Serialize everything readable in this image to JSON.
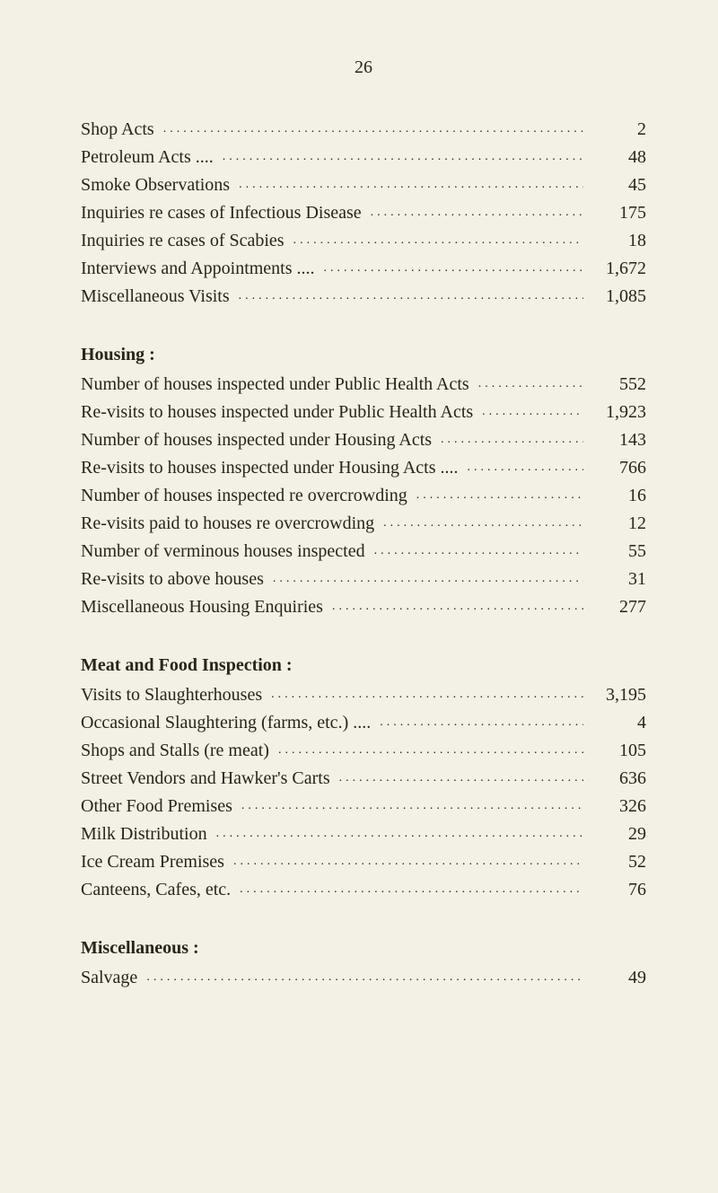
{
  "page_number": "26",
  "sections": [
    {
      "heading": null,
      "rows": [
        {
          "label": "Shop Acts",
          "value": "2"
        },
        {
          "label": "Petroleum Acts ....",
          "value": "48"
        },
        {
          "label": "Smoke Observations",
          "value": "45"
        },
        {
          "label": "Inquiries re cases of Infectious Disease",
          "value": "175"
        },
        {
          "label": "Inquiries re cases of Scabies",
          "value": "18"
        },
        {
          "label": "Interviews and Appointments ....",
          "value": "1,672"
        },
        {
          "label": "Miscellaneous Visits",
          "value": "1,085"
        }
      ]
    },
    {
      "heading": "Housing :",
      "rows": [
        {
          "label": "Number of houses inspected under Public Health Acts",
          "value": "552"
        },
        {
          "label": "Re-visits to houses inspected under Public Health Acts",
          "value": "1,923"
        },
        {
          "label": "Number of houses inspected under Housing Acts",
          "value": "143"
        },
        {
          "label": "Re-visits to houses inspected under Housing Acts ....",
          "value": "766"
        },
        {
          "label": "Number of houses inspected re overcrowding",
          "value": "16"
        },
        {
          "label": "Re-visits paid to houses re overcrowding",
          "value": "12"
        },
        {
          "label": "Number of verminous houses inspected",
          "value": "55"
        },
        {
          "label": "Re-visits to above houses",
          "value": "31"
        },
        {
          "label": "Miscellaneous Housing Enquiries",
          "value": "277"
        }
      ]
    },
    {
      "heading": "Meat and Food Inspection :",
      "rows": [
        {
          "label": "Visits to Slaughterhouses",
          "value": "3,195"
        },
        {
          "label": "Occasional Slaughtering (farms, etc.) ....",
          "value": "4"
        },
        {
          "label": "Shops and Stalls (re meat)",
          "value": "105"
        },
        {
          "label": "Street Vendors and Hawker's Carts",
          "value": "636"
        },
        {
          "label": "Other Food Premises",
          "value": "326"
        },
        {
          "label": "Milk Distribution",
          "value": "29"
        },
        {
          "label": "Ice Cream Premises",
          "value": "52"
        },
        {
          "label": "Canteens, Cafes, etc.",
          "value": "76"
        }
      ]
    },
    {
      "heading": "Miscellaneous :",
      "rows": [
        {
          "label": "Salvage",
          "value": "49"
        }
      ]
    }
  ],
  "dots_fill": "........................................................................................................"
}
